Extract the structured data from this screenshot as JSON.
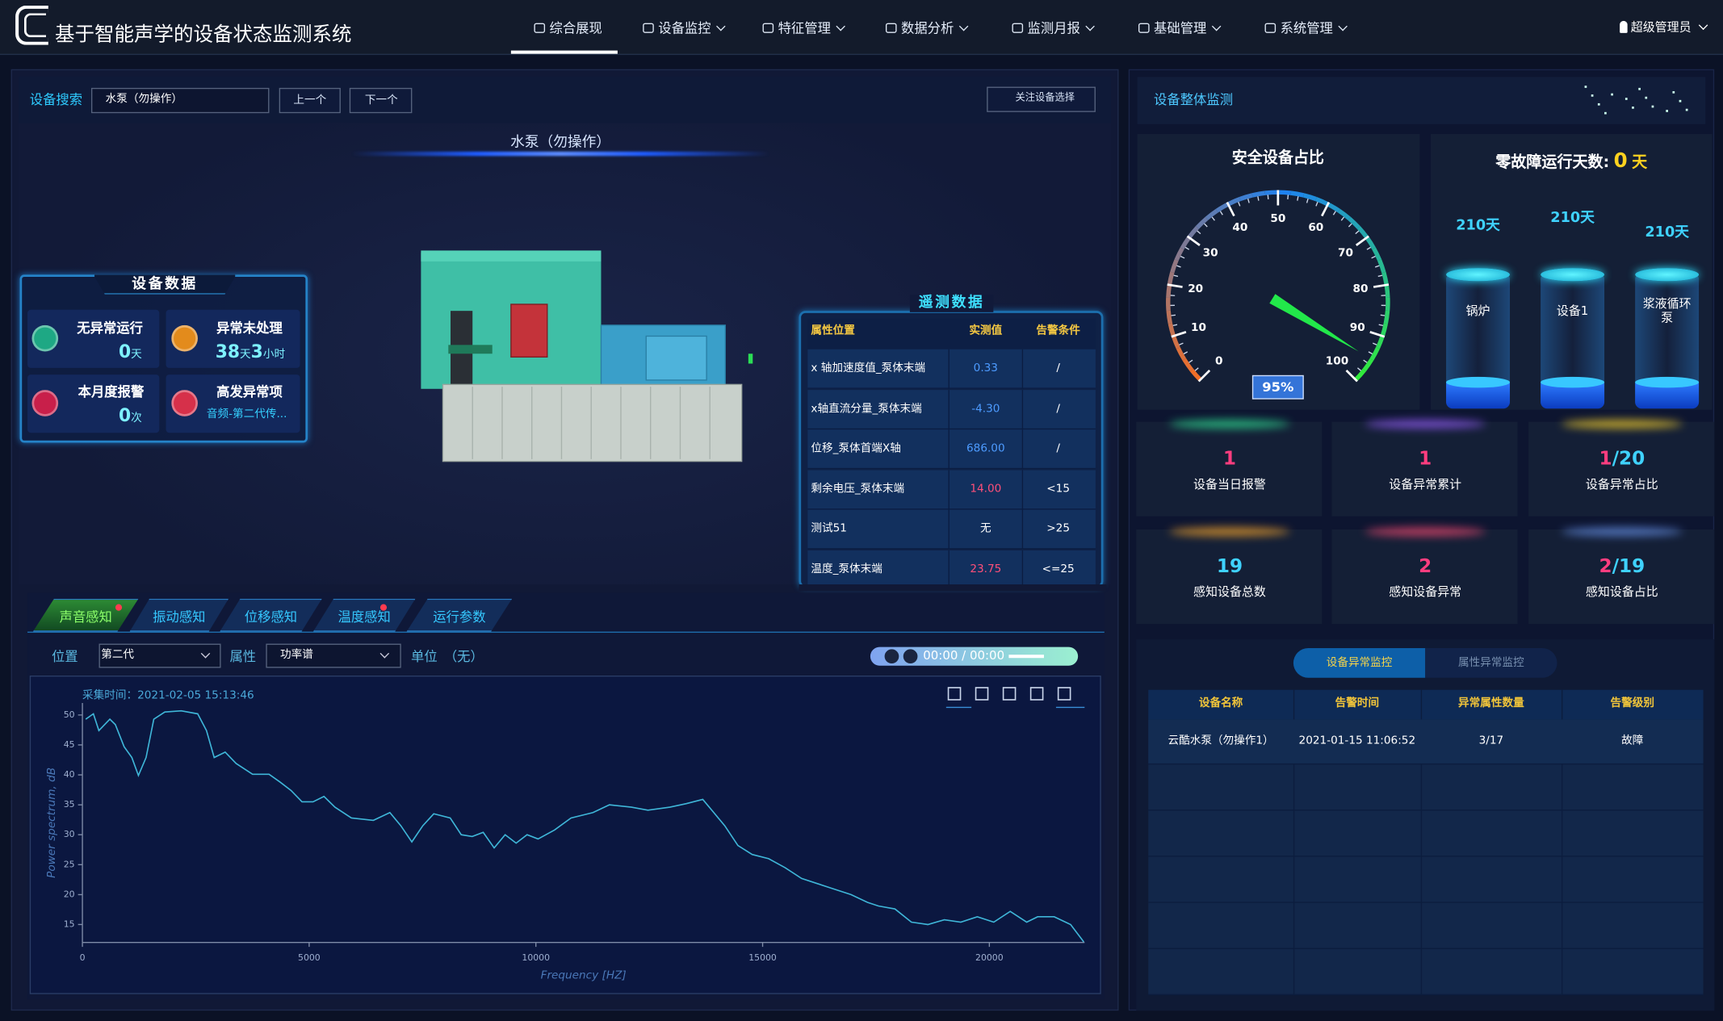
{
  "header": {
    "title": "基于智能声学的设备状态监测系统",
    "nav": [
      "综合展现",
      "设备监控",
      "特征管理",
      "数据分析",
      "监测月报",
      "基础管理",
      "系统管理"
    ],
    "user": "超级管理员"
  },
  "search": {
    "label": "设备搜索",
    "input": "水泵（勿操作）",
    "prev": "上一个",
    "next": "下一个",
    "follow": "关注设备选择"
  },
  "device_name": "水泵（勿操作）",
  "device_data": {
    "title": "设备数据",
    "items": [
      {
        "label": "无异常运行",
        "parts": [
          "0",
          "天"
        ]
      },
      {
        "label": "异常未处理",
        "parts": [
          "38",
          "天",
          "3",
          "小时"
        ]
      },
      {
        "label": "本月度报警",
        "parts": [
          "0",
          "次"
        ]
      },
      {
        "label": "高发异常项",
        "parts": [
          "音频-第二代传..."
        ]
      }
    ]
  },
  "telemetry": {
    "title": "遥测数据",
    "columns": [
      "属性位置",
      "实测值",
      "告警条件"
    ],
    "rows": [
      [
        "x 轴加速度值_泵体末端",
        "0.33",
        "/"
      ],
      [
        "x轴直流分量_泵体末端",
        "-4.30",
        "/"
      ],
      [
        "位移_泵体首端X轴",
        "686.00",
        "/"
      ],
      [
        "剩余电压_泵体末端",
        "14.00",
        "<15"
      ],
      [
        "测试51",
        "无",
        ">25"
      ],
      [
        "温度_泵体末端",
        "23.75",
        "<=25"
      ]
    ]
  },
  "tabs": [
    "声音感知",
    "振动感知",
    "位移感知",
    "温度感知",
    "运行参数"
  ],
  "filters": {
    "position_label": "位置",
    "position": "第二代",
    "attribute_label": "属性",
    "attribute": "功率谱",
    "unit_label": "单位",
    "unit": "（无）"
  },
  "player": {
    "time": "00:00 / 00:00"
  },
  "overview": {
    "title": "设备整体监测",
    "zero_fault_label": "零故障运行天数:",
    "zero_fault_value": "0",
    "zero_fault_unit": "天",
    "tanks": [
      {
        "days": "210天",
        "name": "锅炉"
      },
      {
        "days": "210天",
        "name": "设备1"
      },
      {
        "days": "210天",
        "name": "浆液循环泵"
      }
    ],
    "stats": [
      {
        "parts": [
          "1"
        ],
        "label": "设备当日报警"
      },
      {
        "parts": [
          "1"
        ],
        "label": "设备异常累计"
      },
      {
        "parts": [
          "1",
          "/20"
        ],
        "label": "设备异常占比"
      },
      {
        "parts": [
          "19"
        ],
        "label": "感知设备总数"
      },
      {
        "parts": [
          "2"
        ],
        "label": "感知设备异常"
      },
      {
        "parts": [
          "2",
          "/19"
        ],
        "label": "感知设备占比"
      }
    ]
  },
  "alarms": {
    "tabs": [
      "设备异常监控",
      "属性异常监控"
    ],
    "columns": [
      "设备名称",
      "告警时间",
      "异常属性数量",
      "告警级别"
    ],
    "rows": [
      [
        "云酷水泵（勿操作1）",
        "2021-01-15 11:06:52",
        "3/17",
        "故障"
      ]
    ]
  },
  "chart_data": [
    {
      "type": "line",
      "subtitle": "采集时间：2021-02-05 15:13:46",
      "x_label": "Frequency [HZ]",
      "y_label": "Power spectrum, dB",
      "color": "#3fb6d8",
      "x": [
        73,
        242,
        363,
        605,
        726,
        920,
        1090,
        1235,
        1404,
        1574,
        1816,
        2179,
        2542,
        2736,
        2906,
        3148,
        3390,
        3753,
        4116,
        4358,
        4600,
        4843,
        5085,
        5327,
        5569,
        5932,
        6416,
        6780,
        7022,
        7264,
        7506,
        7748,
        8111,
        8354,
        8596,
        8838,
        9080,
        9322,
        9564,
        9806,
        10048,
        10412,
        10775,
        11259,
        11622,
        12107,
        12470,
        12954,
        13317,
        13680,
        13923,
        14165,
        14455,
        14770,
        15133,
        15496,
        15860,
        16223,
        16586,
        16949,
        17312,
        17554,
        17918,
        18281,
        18644,
        19007,
        19370,
        19734,
        20097,
        20460,
        20823,
        21065,
        21429,
        21792,
        22082
      ],
      "values": [
        49.3,
        50.2,
        47.4,
        49.3,
        48.4,
        44.7,
        42.9,
        39.9,
        42.9,
        49.3,
        50.5,
        50.7,
        50.2,
        47.4,
        42.9,
        43.8,
        41.9,
        40.1,
        40.1,
        38.8,
        37.4,
        35.5,
        35.5,
        36.4,
        34.6,
        32.8,
        32.4,
        33.7,
        31.5,
        28.8,
        31.5,
        33.5,
        32.8,
        30.0,
        29.7,
        30.4,
        27.8,
        30.0,
        28.6,
        30.0,
        29.3,
        30.8,
        32.8,
        33.7,
        35.0,
        34.6,
        34.1,
        34.6,
        35.2,
        35.9,
        33.7,
        31.5,
        28.2,
        26.7,
        26.0,
        24.5,
        22.7,
        21.8,
        20.9,
        20.0,
        18.7,
        18.1,
        17.6,
        15.4,
        15.0,
        15.8,
        15.4,
        16.3,
        15.4,
        17.2,
        15.4,
        16.3,
        16.3,
        15.0,
        12.1
      ],
      "xlim": [
        0,
        22100
      ],
      "ylim": [
        12,
        52
      ],
      "xticks": [
        0,
        5000,
        10000,
        15000,
        20000
      ],
      "yticks": [
        15,
        20,
        25,
        30,
        35,
        40,
        45,
        50
      ]
    },
    {
      "type": "gauge",
      "title": "安全设备占比",
      "value": 95,
      "value_label": "95%",
      "ylim": [
        0,
        100
      ],
      "yticks": [
        0,
        10,
        20,
        30,
        40,
        50,
        60,
        70,
        80,
        90,
        100
      ]
    }
  ]
}
